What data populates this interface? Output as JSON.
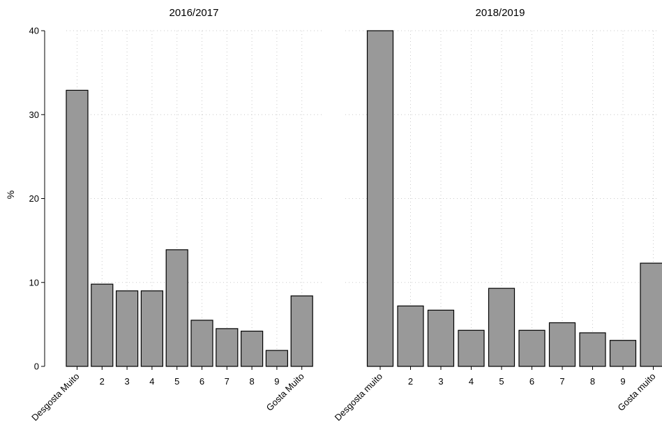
{
  "chart_data": [
    {
      "type": "bar",
      "title": "2016/2017",
      "ylabel": "%",
      "ylim": [
        0,
        40
      ],
      "yticks": [
        0,
        10,
        20,
        30,
        40
      ],
      "categories": [
        "Desgosta Muito",
        "2",
        "3",
        "4",
        "5",
        "6",
        "7",
        "8",
        "9",
        "Gosta Muito"
      ],
      "values": [
        32.9,
        9.8,
        9.0,
        9.0,
        13.9,
        5.5,
        4.5,
        4.2,
        1.9,
        8.4
      ],
      "grid": true
    },
    {
      "type": "bar",
      "title": "2018/2019",
      "ylabel": "",
      "ylim": [
        0,
        40
      ],
      "yticks": [
        0,
        10,
        20,
        30,
        40
      ],
      "show_ytick_labels": false,
      "categories": [
        "Desgosta muito",
        "2",
        "3",
        "4",
        "5",
        "6",
        "7",
        "8",
        "9",
        "Gosta muito"
      ],
      "values": [
        40.0,
        7.2,
        6.7,
        4.3,
        9.3,
        4.3,
        5.2,
        4.0,
        3.1,
        12.3
      ],
      "grid": true
    }
  ]
}
